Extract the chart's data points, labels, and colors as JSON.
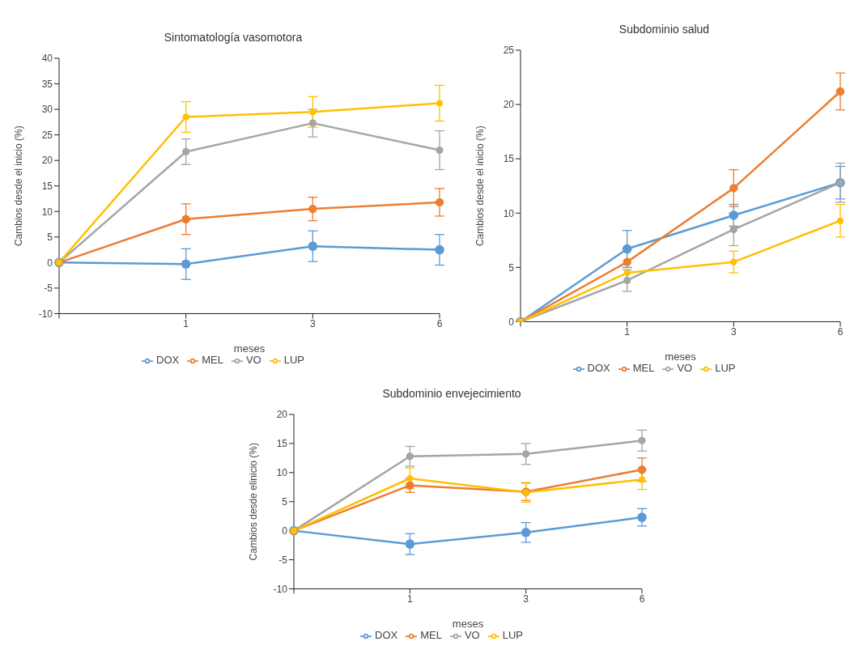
{
  "chart_data": [
    {
      "type": "line",
      "title": "Sintomatología vasomotora",
      "xlabel": "meses",
      "ylabel": "Cambios desde el inicio (%)",
      "categories": [
        null,
        "1",
        "3",
        "6"
      ],
      "ylim": [
        -10,
        40
      ],
      "yticks": [
        -10,
        -5,
        0,
        5,
        10,
        15,
        20,
        25,
        30,
        35,
        40
      ],
      "grid": false,
      "legend": "bottom",
      "marker": "circle",
      "line_style": "solid",
      "series": [
        {
          "name": "DOX",
          "color": "#5b9bd5",
          "values": [
            0,
            -0.3,
            3.2,
            2.5
          ],
          "errors": [
            null,
            3,
            3,
            3
          ]
        },
        {
          "name": "MEL",
          "color": "#ed7d31",
          "values": [
            0,
            8.5,
            10.5,
            11.8
          ],
          "errors": [
            null,
            3,
            2.3,
            2.7
          ]
        },
        {
          "name": "VO",
          "color": "#a5a5a5",
          "values": [
            0,
            21.7,
            27.3,
            22
          ],
          "errors": [
            null,
            2.5,
            2.7,
            3.8
          ]
        },
        {
          "name": "LUP",
          "color": "#ffc000",
          "values": [
            0,
            28.5,
            29.5,
            31.2
          ],
          "errors": [
            null,
            3,
            3,
            3.5
          ]
        }
      ]
    },
    {
      "type": "line",
      "title": "Subdominio salud",
      "xlabel": "meses",
      "ylabel": "Cambios desde el inicio (%)",
      "categories": [
        null,
        "1",
        "3",
        "6"
      ],
      "ylim": [
        0,
        25
      ],
      "yticks": [
        0,
        5,
        10,
        15,
        20,
        25
      ],
      "grid": false,
      "legend": "bottom",
      "marker": "circle",
      "line_style": "solid",
      "series": [
        {
          "name": "DOX",
          "color": "#5b9bd5",
          "values": [
            0,
            6.7,
            9.8,
            12.8
          ],
          "errors": [
            null,
            1.7,
            1,
            1.5
          ]
        },
        {
          "name": "MEL",
          "color": "#ed7d31",
          "values": [
            0,
            5.5,
            12.3,
            21.2
          ],
          "errors": [
            null,
            null,
            1.7,
            1.7
          ]
        },
        {
          "name": "VO",
          "color": "#a5a5a5",
          "values": [
            0,
            3.8,
            8.5,
            12.8
          ],
          "errors": [
            null,
            1,
            1.5,
            1.8
          ]
        },
        {
          "name": "LUP",
          "color": "#ffc000",
          "values": [
            0,
            4.5,
            5.5,
            9.3
          ],
          "errors": [
            null,
            null,
            1,
            1.5
          ]
        }
      ]
    },
    {
      "type": "line",
      "title": "Subdominio envejecimiento",
      "xlabel": "meses",
      "ylabel": "Cambios desde elinicio (%)",
      "categories": [
        null,
        "1",
        "3",
        "6"
      ],
      "ylim": [
        -10,
        20
      ],
      "yticks": [
        -10,
        -5,
        0,
        5,
        10,
        15,
        20
      ],
      "grid": false,
      "legend": "bottom",
      "marker": "circle",
      "line_style": "solid",
      "series": [
        {
          "name": "DOX",
          "color": "#5b9bd5",
          "values": [
            0,
            -2.3,
            -0.3,
            2.3
          ],
          "errors": [
            null,
            1.8,
            1.7,
            1.5
          ]
        },
        {
          "name": "MEL",
          "color": "#ed7d31",
          "values": [
            0,
            7.8,
            6.7,
            10.5
          ],
          "errors": [
            null,
            1.2,
            1.5,
            2
          ]
        },
        {
          "name": "VO",
          "color": "#a5a5a5",
          "values": [
            0,
            12.8,
            13.2,
            15.5
          ],
          "errors": [
            null,
            1.7,
            1.8,
            1.8
          ]
        },
        {
          "name": "LUP",
          "color": "#ffc000",
          "values": [
            0,
            9,
            6.6,
            8.8
          ],
          "errors": [
            null,
            1.8,
            1.7,
            1.7
          ]
        }
      ]
    }
  ]
}
